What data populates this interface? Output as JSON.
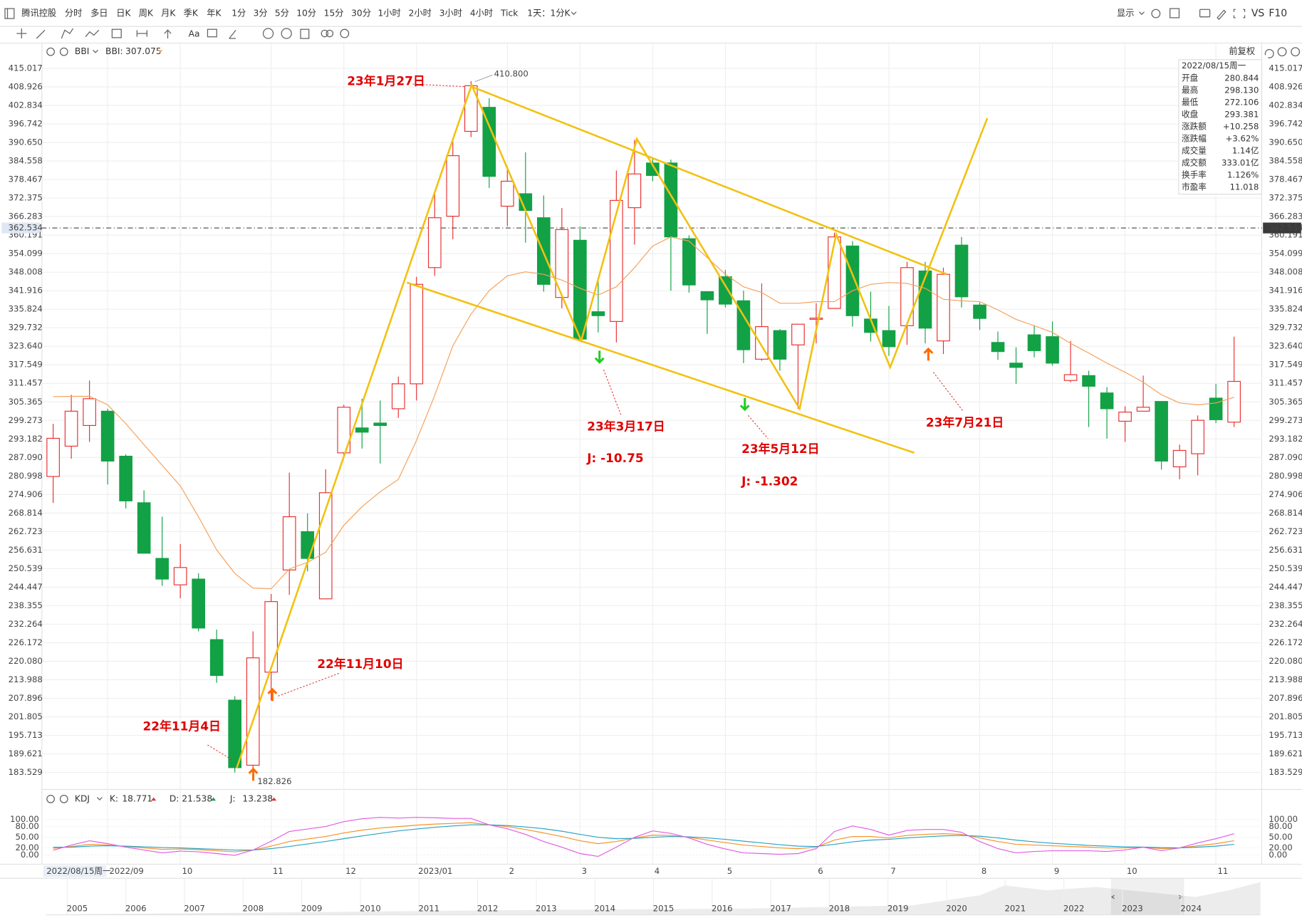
{
  "toolbar": {
    "title": "腾讯控股",
    "periods": [
      "分时",
      "多日",
      "日K",
      "周K",
      "月K",
      "季K",
      "年K",
      "1分",
      "3分",
      "5分",
      "10分",
      "15分",
      "30分",
      "1小时",
      "2小时",
      "3小时",
      "4小时",
      "Tick",
      "1天：1分K"
    ],
    "active": 3,
    "active_color": "#ff6a00",
    "display": "显示",
    "vs": "VS",
    "f10": "F10",
    "text_tool": "Aa",
    "adjust": "前复权"
  },
  "indicators": {
    "main": "BBI",
    "main_legend": [
      {
        "label": "BBI:",
        "value": "307.075"
      }
    ],
    "sub": "KDJ",
    "sub_legend": [
      {
        "label": "K:",
        "value": "18.771"
      },
      {
        "label": "D:",
        "value": "21.538"
      },
      {
        "label": "J:",
        "value": "13.238"
      }
    ]
  },
  "info_panel": {
    "title": "2022/08/15周一",
    "rows": [
      {
        "label": "开盘",
        "value": "280.844",
        "color": "#13a146"
      },
      {
        "label": "最高",
        "value": "298.130",
        "color": "#e83030"
      },
      {
        "label": "最低",
        "value": "272.106",
        "color": "#13a146"
      },
      {
        "label": "收盘",
        "value": "293.381",
        "color": "#e83030"
      },
      {
        "label": "涨跌额",
        "value": "+10.258",
        "color": "#e83030"
      },
      {
        "label": "涨跌幅",
        "value": "+3.62%",
        "color": "#e83030"
      },
      {
        "label": "成交量",
        "value": "1.14亿",
        "color": "#555555"
      },
      {
        "label": "成交额",
        "value": "333.01亿",
        "color": "#555555"
      },
      {
        "label": "换手率",
        "value": "1.126%",
        "color": "#555555"
      },
      {
        "label": "市盈率",
        "value": "11.018",
        "color": "#555555"
      }
    ]
  },
  "annotations": [
    "23年1月27日",
    "23年3月17日",
    "J:  -10.75",
    "23年5月12日",
    "J:  -1.302",
    "23年7月21日",
    "22年11月10日",
    "22年11月4日"
  ],
  "price_marks": [
    "410.800",
    "182.826"
  ],
  "navigator": {
    "years": [
      "2005",
      "2006",
      "2007",
      "2008",
      "2009",
      "2010",
      "2011",
      "2012",
      "2013",
      "2014",
      "2015",
      "2016",
      "2017",
      "2018",
      "2019",
      "2020",
      "2021",
      "2022",
      "2023",
      "2024"
    ]
  },
  "chart_data": [
    {
      "type": "candlestick",
      "categories": [
        "2022/08/15周一",
        null,
        null,
        "2022/09",
        null,
        null,
        null,
        "10",
        null,
        null,
        null,
        null,
        "11",
        null,
        null,
        null,
        "12",
        null,
        null,
        null,
        "2023/01",
        null,
        null,
        null,
        null,
        "2",
        null,
        null,
        null,
        "3",
        null,
        null,
        null,
        "4",
        null,
        null,
        null,
        "5",
        null,
        null,
        null,
        null,
        "6",
        null,
        null,
        null,
        "7",
        null,
        null,
        null,
        null,
        "8",
        null,
        null,
        null,
        "9",
        null,
        null,
        null,
        "10",
        null,
        null,
        null,
        null,
        "11",
        null
      ],
      "open": [
        280.844,
        290.8,
        297.6,
        302.3,
        287.5,
        272.2,
        253.9,
        245.2,
        247.1,
        227.2,
        207.3,
        185.9,
        216.5,
        250.1,
        262.7,
        240.6,
        288.6,
        296.8,
        298.4,
        303.1,
        311.3,
        349.5,
        366.4,
        394.3,
        402.2,
        369.7,
        373.8,
        365.9,
        339.7,
        358.5,
        335.0,
        331.8,
        369.2,
        383.9,
        383.9,
        359.0,
        341.6,
        346.5,
        338.6,
        319.4,
        328.8,
        324.1,
        332.5,
        336.1,
        356.6,
        332.6,
        328.8,
        330.4,
        348.4,
        325.4,
        356.9,
        337.2,
        324.9,
        318.1,
        327.4,
        326.8,
        312.4,
        314.0,
        308.3,
        299.0,
        302.3,
        305.5,
        284.0,
        288.3,
        306.6,
        298.7
      ],
      "high": [
        298.13,
        307.7,
        312.4,
        303.1,
        288.1,
        276.3,
        267.6,
        258.6,
        249.0,
        230.5,
        208.6,
        229.9,
        242.2,
        282.1,
        268.7,
        283.2,
        304.4,
        306.4,
        305.8,
        313.7,
        346.5,
        374.1,
        391.5,
        410.8,
        405.2,
        382.8,
        387.4,
        373.2,
        369.1,
        363.1,
        346.2,
        381.4,
        391.5,
        385.5,
        385.0,
        360.1,
        341.6,
        348.7,
        341.9,
        344.3,
        329.3,
        330.9,
        337.8,
        361.0,
        358.2,
        341.6,
        336.9,
        351.4,
        351.4,
        349.5,
        359.6,
        338.0,
        328.5,
        323.3,
        330.6,
        331.8,
        325.4,
        315.6,
        310.2,
        303.9,
        314.0,
        305.5,
        291.3,
        300.9,
        311.3,
        326.8
      ],
      "low": [
        272.106,
        286.7,
        292.2,
        278.2,
        270.3,
        255.6,
        244.9,
        240.8,
        229.9,
        213.0,
        183.5,
        182.826,
        207.3,
        241.9,
        249.6,
        240.6,
        287.8,
        290.0,
        285.1,
        300.1,
        305.8,
        346.8,
        358.8,
        392.4,
        375.7,
        363.1,
        357.7,
        341.6,
        336.1,
        326.0,
        328.2,
        324.9,
        357.1,
        377.9,
        341.9,
        341.3,
        327.7,
        336.4,
        318.1,
        318.9,
        315.6,
        303.1,
        324.6,
        336.1,
        330.1,
        325.2,
        320.5,
        324.1,
        324.6,
        321.1,
        336.4,
        329.0,
        319.2,
        311.3,
        320.0,
        317.3,
        311.8,
        297.1,
        293.3,
        292.2,
        302.3,
        283.1,
        279.9,
        281.2,
        298.4,
        297.1
      ],
      "close": [
        293.381,
        302.3,
        306.4,
        285.9,
        272.8,
        255.6,
        247.1,
        250.9,
        231.0,
        215.4,
        185.1,
        221.2,
        239.7,
        267.6,
        253.9,
        275.5,
        303.6,
        295.4,
        297.6,
        311.3,
        344.0,
        365.9,
        386.3,
        409.3,
        379.5,
        377.9,
        368.3,
        344.0,
        362.0,
        326.0,
        333.7,
        371.6,
        380.3,
        379.8,
        359.6,
        343.8,
        338.9,
        337.5,
        322.5,
        330.1,
        319.4,
        330.9,
        332.9,
        359.6,
        333.7,
        328.2,
        323.5,
        349.5,
        329.6,
        347.3,
        339.9,
        332.8,
        321.9,
        316.7,
        322.2,
        318.1,
        314.3,
        310.5,
        303.1,
        302.0,
        303.6,
        285.9,
        289.4,
        299.3,
        299.5,
        312.1
      ],
      "up_color": "#e83030",
      "down_color": "#13a146",
      "series": [
        {
          "name": "BBI",
          "color": "#f5a05a",
          "values": [
            307.075,
            307.2,
            307.2,
            304.4,
            298.2,
            291.3,
            284.5,
            277.7,
            267.6,
            256.7,
            249.0,
            244.1,
            243.9,
            250.4,
            252.6,
            255.9,
            264.8,
            270.9,
            275.8,
            279.9,
            292.7,
            307.5,
            323.8,
            334.2,
            341.9,
            346.8,
            348.1,
            347.3,
            345.4,
            342.7,
            340.5,
            343.2,
            349.5,
            356.6,
            359.6,
            358.2,
            352.8,
            347.3,
            343.2,
            341.3,
            337.8,
            337.8,
            338.3,
            338.3,
            341.9,
            344.0,
            344.6,
            344.3,
            342.7,
            339.1,
            338.6,
            338.3,
            335.6,
            332.5,
            330.4,
            328.2,
            324.6,
            321.4,
            318.1,
            315.1,
            311.8,
            307.7,
            305.0,
            304.4,
            305.0,
            306.9
          ]
        }
      ],
      "crosshair": 362.534,
      "ylim": [
        178.07,
        418.29
      ],
      "yticks": [
        415.017,
        408.926,
        402.834,
        396.742,
        {
          "value": 390.65,
          "label": "390.650"
        },
        384.558,
        378.467,
        372.375,
        366.283,
        360.191,
        354.099,
        348.008,
        341.916,
        335.824,
        329.732,
        {
          "value": 323.64,
          "label": "323.640"
        },
        317.549,
        311.457,
        305.365,
        299.273,
        293.182,
        {
          "value": 287.09,
          "label": "287.090"
        },
        280.998,
        274.906,
        268.814,
        262.723,
        256.631,
        250.539,
        244.447,
        238.355,
        232.264,
        226.172,
        {
          "value": 220.08,
          "label": "220.080"
        },
        213.988,
        207.896,
        201.805,
        195.713,
        189.621,
        183.529
      ],
      "grid": true
    },
    {
      "type": "line",
      "series": [
        {
          "name": "K",
          "color": "#f5922a",
          "values": [
            18.771,
            24,
            30,
            28,
            24,
            20,
            16,
            17,
            15,
            12,
            9,
            14,
            25,
            38,
            45,
            52,
            62,
            70,
            76,
            80,
            84,
            87,
            89,
            91,
            85,
            80,
            72,
            62,
            52,
            40,
            32,
            38,
            48,
            56,
            55,
            50,
            42,
            35,
            28,
            24,
            20,
            18,
            22,
            42,
            52,
            52,
            48,
            55,
            58,
            60,
            58,
            48,
            38,
            30,
            28,
            26,
            24,
            22,
            20,
            20,
            22,
            18,
            20,
            26,
            32,
            40
          ]
        },
        {
          "name": "D",
          "color": "#2aa4c6",
          "values": [
            21.538,
            22,
            25,
            26,
            25,
            23,
            21,
            20,
            18,
            16,
            14,
            14,
            18,
            24,
            31,
            38,
            46,
            54,
            61,
            68,
            73,
            78,
            82,
            85,
            85,
            83,
            79,
            74,
            67,
            58,
            50,
            46,
            47,
            50,
            52,
            51,
            48,
            44,
            39,
            34,
            29,
            25,
            24,
            30,
            37,
            42,
            44,
            48,
            51,
            54,
            55,
            53,
            48,
            42,
            37,
            33,
            30,
            27,
            25,
            23,
            22,
            21,
            20,
            22,
            25,
            30
          ]
        },
        {
          "name": "J",
          "color": "#e35ce3",
          "values": [
            13.238,
            28,
            40,
            32,
            22,
            14,
            6,
            11,
            9,
            4,
            -1,
            14,
            39,
            66,
            73,
            80,
            94,
            102,
            106,
            104,
            106,
            105,
            103,
            103,
            85,
            74,
            58,
            38,
            22,
            4,
            -4,
            22,
            50,
            68,
            61,
            48,
            30,
            17,
            6,
            4,
            2,
            4,
            18,
            66,
            82,
            72,
            56,
            69,
            72,
            72,
            64,
            38,
            18,
            6,
            10,
            12,
            12,
            12,
            10,
            14,
            22,
            12,
            20,
            34,
            46,
            60
          ]
        }
      ],
      "ylim": [
        -20,
        125
      ],
      "yticks": [
        {
          "value": 100,
          "label": "100.00"
        },
        {
          "value": 80,
          "label": "80.00"
        },
        {
          "value": 50,
          "label": "50.00"
        },
        {
          "value": 20,
          "label": "20.00"
        },
        {
          "value": 0,
          "label": "0.00"
        }
      ],
      "grid": true
    }
  ]
}
